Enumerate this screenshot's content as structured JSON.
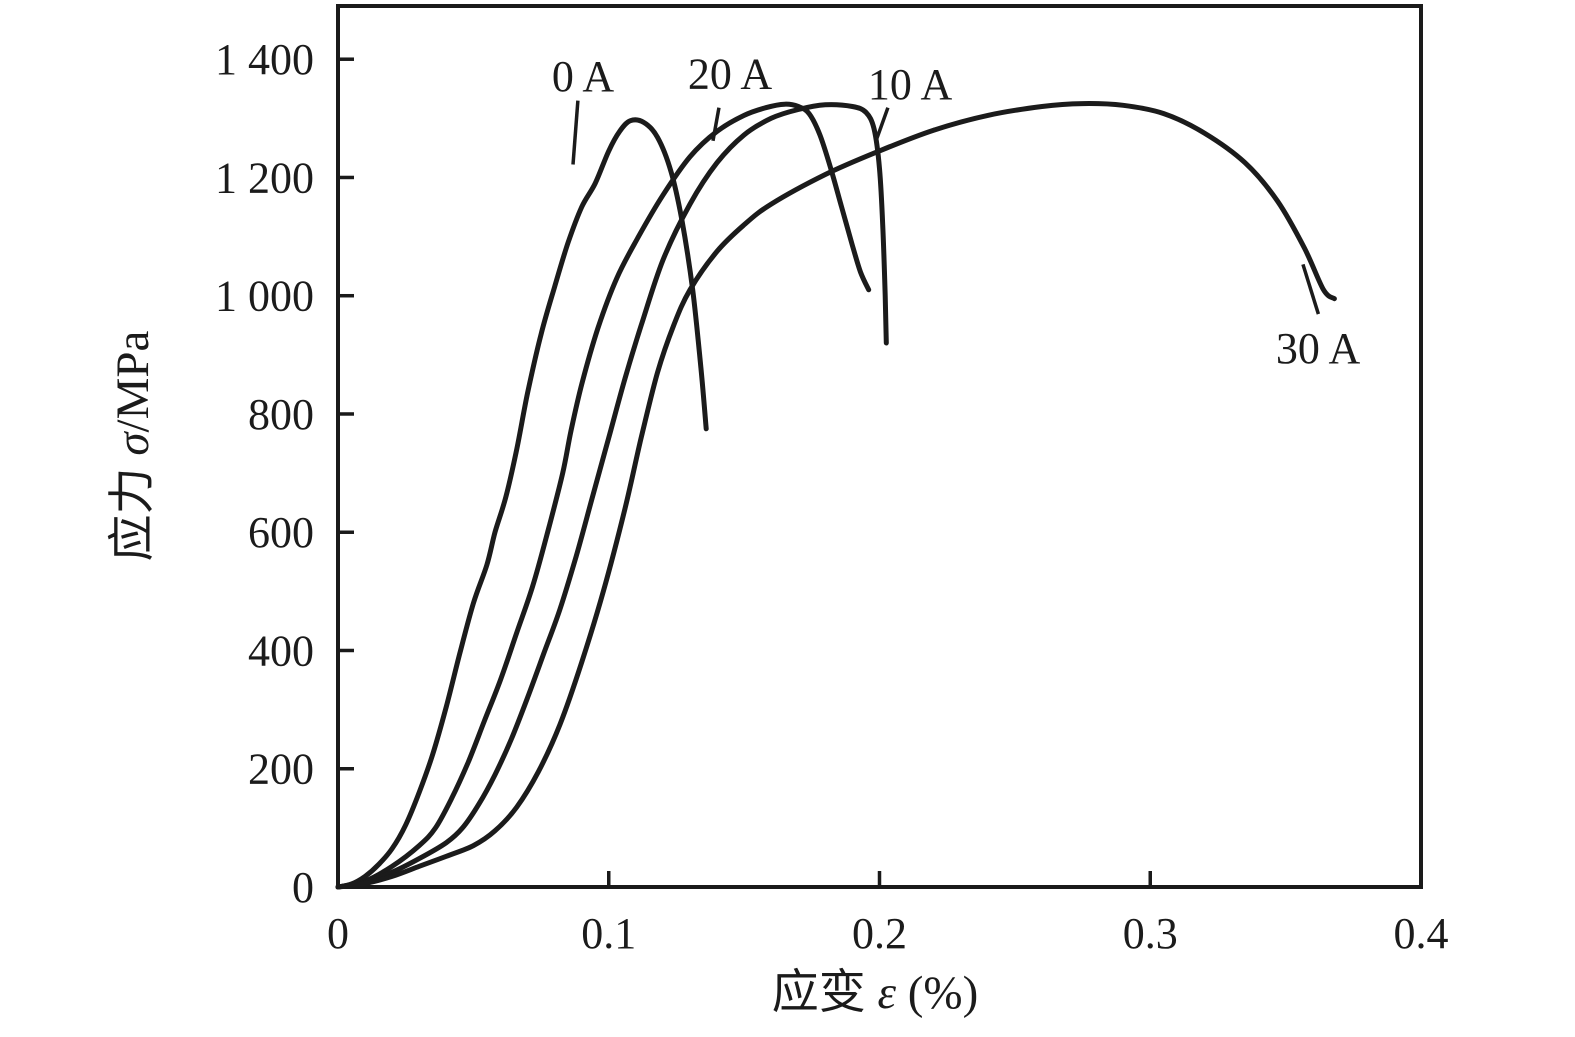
{
  "colors": {
    "background": "#ffffff",
    "axis": "#1a1a1a",
    "curve": "#1b1b1b",
    "text": "#1b1b1b"
  },
  "chart_data": {
    "type": "line",
    "title": "",
    "xlabel": "应变 ε (%)",
    "ylabel": "应力 σ/MPa",
    "xlabel_parts": [
      "应变 ",
      "ε",
      " (%)"
    ],
    "ylabel_parts": [
      "应力 ",
      "σ",
      "/MPa"
    ],
    "xlim": [
      0,
      0.4
    ],
    "ylim": [
      0,
      1490
    ],
    "grid": false,
    "legend_position": "none",
    "x_ticks": [
      {
        "v": 0.0,
        "label": "0"
      },
      {
        "v": 0.1,
        "label": "0.1"
      },
      {
        "v": 0.2,
        "label": "0.2"
      },
      {
        "v": 0.3,
        "label": "0.3"
      },
      {
        "v": 0.4,
        "label": "0.4"
      }
    ],
    "y_ticks": [
      {
        "v": 0,
        "label": "0"
      },
      {
        "v": 200,
        "label": "200"
      },
      {
        "v": 400,
        "label": "400"
      },
      {
        "v": 600,
        "label": "600"
      },
      {
        "v": 800,
        "label": "800"
      },
      {
        "v": 1000,
        "label": "1 000"
      },
      {
        "v": 1200,
        "label": "1 200"
      },
      {
        "v": 1400,
        "label": "1 400"
      }
    ],
    "series": [
      {
        "name": "0 A",
        "points": [
          [
            0,
            0
          ],
          [
            0.005,
            5
          ],
          [
            0.01,
            18
          ],
          [
            0.015,
            38
          ],
          [
            0.02,
            65
          ],
          [
            0.025,
            105
          ],
          [
            0.03,
            160
          ],
          [
            0.035,
            225
          ],
          [
            0.04,
            305
          ],
          [
            0.045,
            395
          ],
          [
            0.05,
            480
          ],
          [
            0.055,
            545
          ],
          [
            0.058,
            600
          ],
          [
            0.062,
            660
          ],
          [
            0.066,
            740
          ],
          [
            0.07,
            835
          ],
          [
            0.075,
            935
          ],
          [
            0.08,
            1015
          ],
          [
            0.085,
            1090
          ],
          [
            0.09,
            1150
          ],
          [
            0.095,
            1190
          ],
          [
            0.1,
            1245
          ],
          [
            0.104,
            1278
          ],
          [
            0.108,
            1296
          ],
          [
            0.113,
            1293
          ],
          [
            0.118,
            1268
          ],
          [
            0.123,
            1210
          ],
          [
            0.127,
            1128
          ],
          [
            0.131,
            1010
          ],
          [
            0.134,
            880
          ],
          [
            0.136,
            775
          ]
        ]
      },
      {
        "name": "20 A",
        "points": [
          [
            0,
            0
          ],
          [
            0.01,
            10
          ],
          [
            0.02,
            35
          ],
          [
            0.03,
            70
          ],
          [
            0.036,
            100
          ],
          [
            0.042,
            150
          ],
          [
            0.048,
            210
          ],
          [
            0.054,
            280
          ],
          [
            0.06,
            350
          ],
          [
            0.066,
            430
          ],
          [
            0.072,
            510
          ],
          [
            0.078,
            610
          ],
          [
            0.083,
            700
          ],
          [
            0.086,
            770
          ],
          [
            0.09,
            850
          ],
          [
            0.096,
            945
          ],
          [
            0.103,
            1030
          ],
          [
            0.111,
            1100
          ],
          [
            0.12,
            1170
          ],
          [
            0.13,
            1235
          ],
          [
            0.14,
            1278
          ],
          [
            0.15,
            1305
          ],
          [
            0.158,
            1318
          ],
          [
            0.165,
            1324
          ],
          [
            0.17,
            1320
          ],
          [
            0.174,
            1308
          ],
          [
            0.178,
            1272
          ],
          [
            0.182,
            1215
          ],
          [
            0.186,
            1150
          ],
          [
            0.19,
            1085
          ],
          [
            0.193,
            1040
          ],
          [
            0.196,
            1010
          ]
        ]
      },
      {
        "name": "10 A",
        "points": [
          [
            0,
            0
          ],
          [
            0.01,
            8
          ],
          [
            0.02,
            25
          ],
          [
            0.03,
            48
          ],
          [
            0.04,
            75
          ],
          [
            0.046,
            100
          ],
          [
            0.052,
            140
          ],
          [
            0.058,
            190
          ],
          [
            0.064,
            250
          ],
          [
            0.07,
            320
          ],
          [
            0.076,
            395
          ],
          [
            0.082,
            470
          ],
          [
            0.088,
            560
          ],
          [
            0.094,
            660
          ],
          [
            0.1,
            760
          ],
          [
            0.106,
            860
          ],
          [
            0.112,
            950
          ],
          [
            0.12,
            1060
          ],
          [
            0.13,
            1155
          ],
          [
            0.14,
            1225
          ],
          [
            0.15,
            1272
          ],
          [
            0.16,
            1300
          ],
          [
            0.17,
            1315
          ],
          [
            0.18,
            1323
          ],
          [
            0.19,
            1320
          ],
          [
            0.195,
            1310
          ],
          [
            0.198,
            1282
          ],
          [
            0.2,
            1215
          ],
          [
            0.2012,
            1120
          ],
          [
            0.2021,
            1000
          ],
          [
            0.2025,
            920
          ]
        ]
      },
      {
        "name": "30 A",
        "points": [
          [
            0,
            0
          ],
          [
            0.01,
            6
          ],
          [
            0.02,
            18
          ],
          [
            0.03,
            35
          ],
          [
            0.04,
            52
          ],
          [
            0.05,
            70
          ],
          [
            0.058,
            95
          ],
          [
            0.066,
            135
          ],
          [
            0.074,
            195
          ],
          [
            0.082,
            275
          ],
          [
            0.09,
            380
          ],
          [
            0.098,
            500
          ],
          [
            0.106,
            640
          ],
          [
            0.112,
            760
          ],
          [
            0.118,
            870
          ],
          [
            0.124,
            950
          ],
          [
            0.13,
            1010
          ],
          [
            0.14,
            1075
          ],
          [
            0.15,
            1120
          ],
          [
            0.16,
            1155
          ],
          [
            0.18,
            1205
          ],
          [
            0.2,
            1245
          ],
          [
            0.22,
            1280
          ],
          [
            0.24,
            1305
          ],
          [
            0.26,
            1320
          ],
          [
            0.275,
            1325
          ],
          [
            0.29,
            1322
          ],
          [
            0.305,
            1308
          ],
          [
            0.32,
            1275
          ],
          [
            0.335,
            1225
          ],
          [
            0.347,
            1160
          ],
          [
            0.357,
            1080
          ],
          [
            0.364,
            1010
          ],
          [
            0.368,
            995
          ]
        ]
      }
    ],
    "annotations": [
      {
        "id": "0a",
        "text": "0 A",
        "tx": 0.0905,
        "ty": 1372,
        "leader": [
          [
            0.0886,
            1330
          ],
          [
            0.0868,
            1222
          ]
        ]
      },
      {
        "id": "20a",
        "text": "20 A",
        "tx": 0.1448,
        "ty": 1376,
        "leader": [
          [
            0.1407,
            1318
          ],
          [
            0.1385,
            1262
          ]
        ]
      },
      {
        "id": "10a",
        "text": "10 A",
        "tx": 0.2113,
        "ty": 1358,
        "leader": [
          [
            0.2031,
            1318
          ],
          [
            0.1988,
            1263
          ]
        ]
      },
      {
        "id": "30a",
        "text": "30 A",
        "tx": 0.362,
        "ty": 912,
        "leader": [
          [
            0.3564,
            1053
          ],
          [
            0.3621,
            969
          ]
        ]
      }
    ]
  }
}
